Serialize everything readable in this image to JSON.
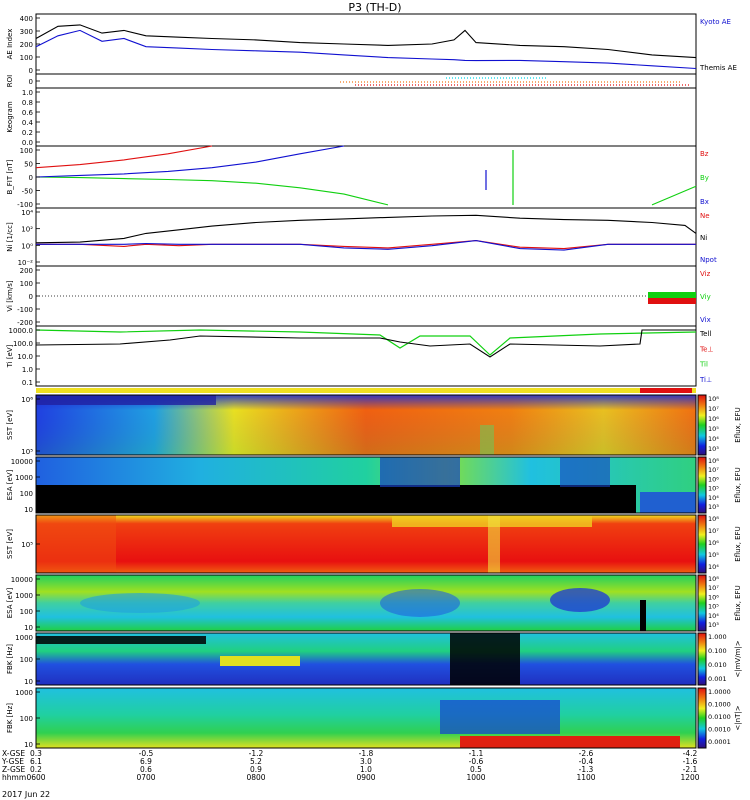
{
  "title": "P3 (TH-D)",
  "colors": {
    "red": "#e01010",
    "green": "#10d010",
    "blue": "#1010d0",
    "black": "#000000",
    "cyan": "#00d8e8",
    "orange": "#f07818"
  },
  "footer": {
    "rows": [
      {
        "label": "X-GSE",
        "values": [
          "0.3",
          "-0.5",
          "-1.2",
          "-1.8",
          "-1.1",
          "-2.6",
          "-4.2"
        ]
      },
      {
        "label": "Y-GSE",
        "values": [
          "6.1",
          "6.9",
          "5.2",
          "3.0",
          "-0.6",
          "-0.4",
          "-1.6"
        ]
      },
      {
        "label": "Z-GSE",
        "values": [
          "0.2",
          "0.6",
          "0.9",
          "1.0",
          "0.5",
          "-1.3",
          "-2.1"
        ]
      },
      {
        "label": "hhmm",
        "values": [
          "0600",
          "0700",
          "0800",
          "0900",
          "1000",
          "1100",
          "1200"
        ]
      }
    ],
    "date": "2017 Jun 22"
  },
  "chart_data": [
    {
      "type": "line",
      "ylabel": "AE Index",
      "ylim": [
        -20,
        420
      ],
      "yticks": [
        "400",
        "300",
        "200",
        "100",
        "0"
      ],
      "legend": [
        "Kyoto AE",
        "Themis AE"
      ],
      "x_hours": [
        6.0,
        6.2,
        6.4,
        6.6,
        6.8,
        7.0,
        7.3,
        7.6,
        8.0,
        8.4,
        8.8,
        9.2,
        9.6,
        9.8,
        9.9,
        10.0,
        10.4,
        10.8,
        11.2,
        11.6,
        12.0
      ],
      "series": [
        {
          "name": "Kyoto AE",
          "values": [
            180,
            260,
            300,
            220,
            240,
            180,
            170,
            160,
            150,
            140,
            120,
            100,
            90,
            85,
            80,
            78,
            80,
            70,
            60,
            40,
            20
          ]
        },
        {
          "name": "Themis AE",
          "values": [
            240,
            330,
            340,
            280,
            300,
            260,
            250,
            240,
            230,
            210,
            200,
            190,
            200,
            230,
            300,
            210,
            190,
            180,
            160,
            120,
            100
          ]
        }
      ]
    },
    {
      "type": "line",
      "ylabel": "ROI",
      "ylim": [
        0,
        1
      ],
      "yticks": [
        "0"
      ]
    },
    {
      "type": "line",
      "ylabel": "Keogram",
      "ylim": [
        0,
        1
      ],
      "yticks": [
        "1.0",
        "0.8",
        "0.6",
        "0.4",
        "0.2",
        "0.0"
      ]
    },
    {
      "type": "line",
      "ylabel": "B_FIT [nT]",
      "ylim": [
        -100,
        100
      ],
      "yticks": [
        "100",
        "50",
        "0",
        "-50",
        "-100"
      ],
      "legend": [
        "Bz",
        "By",
        "Bx"
      ],
      "x_hours": [
        6.0,
        6.4,
        6.8,
        7.2,
        7.6,
        8.0,
        8.4,
        8.8,
        9.2,
        9.6,
        10.0,
        10.4,
        10.8,
        11.2,
        11.6,
        12.0
      ],
      "series": [
        {
          "name": "Bz",
          "values": [
            30,
            40,
            55,
            75,
            100,
            null,
            null,
            null,
            null,
            null,
            null,
            null,
            null,
            null,
            null,
            null
          ]
        },
        {
          "name": "By",
          "values": [
            0,
            -2,
            -5,
            -8,
            -12,
            -20,
            -35,
            -55,
            -90,
            null,
            null,
            null,
            null,
            null,
            -90,
            -30
          ]
        },
        {
          "name": "Bx",
          "values": [
            0,
            5,
            10,
            18,
            30,
            48,
            75,
            100,
            null,
            null,
            null,
            null,
            null,
            null,
            null,
            null
          ]
        }
      ]
    },
    {
      "type": "line",
      "ylabel": "Ni [1/cc]",
      "yscale": "log",
      "yticks": [
        "10⁴",
        "10²",
        "10⁰",
        "10⁻²"
      ],
      "legend": [
        "Ne",
        "Ni",
        "Npot"
      ],
      "x_hours": [
        6.0,
        6.4,
        6.8,
        7.0,
        7.3,
        7.6,
        8.0,
        8.4,
        8.8,
        9.2,
        9.6,
        10.0,
        10.4,
        10.8,
        11.2,
        11.6,
        11.9,
        12.0
      ],
      "series": [
        {
          "name": "Ne",
          "values": [
            0,
            0,
            -0.3,
            0,
            -0.2,
            0,
            0,
            0,
            -0.3,
            -0.5,
            0,
            0.5,
            -0.4,
            -0.6,
            0,
            0,
            0,
            0
          ]
        },
        {
          "name": "Ni",
          "values": [
            0.2,
            0.3,
            0.8,
            1.5,
            2.0,
            2.5,
            3.0,
            3.3,
            3.5,
            3.7,
            3.9,
            4.0,
            3.6,
            3.4,
            3.3,
            3.0,
            2.6,
            1.5
          ]
        },
        {
          "name": "Npot",
          "values": [
            0,
            0,
            0,
            0.1,
            0,
            0,
            0,
            0,
            -0.5,
            -0.7,
            -0.2,
            0.5,
            -0.6,
            -0.8,
            0,
            0,
            0,
            0
          ]
        }
      ]
    },
    {
      "type": "line",
      "ylabel": "Vi [km/s]",
      "ylim": [
        -250,
        250
      ],
      "yticks": [
        "200",
        "100",
        "0",
        "-100",
        "-200"
      ],
      "legend": [
        "Viz",
        "Viy",
        "Vix"
      ]
    },
    {
      "type": "line",
      "ylabel": "Ti [eV]",
      "yscale": "log",
      "yticks": [
        "1000.0",
        "100.0",
        "10.0",
        "1.0",
        "0.1"
      ],
      "legend": [
        "Tell",
        "Te⊥",
        "Til",
        "Ti⊥"
      ]
    },
    {
      "type": "heatmap",
      "ylabel": "SST [eV]",
      "colorbar_label": "Eflux, EFU",
      "yticks": [
        "10⁶",
        "10⁵"
      ],
      "cbticks": [
        "10⁸",
        "10⁷",
        "10⁶",
        "10⁵",
        "10⁴",
        "10³"
      ]
    },
    {
      "type": "heatmap",
      "ylabel": "ESA [eV]",
      "colorbar_label": "Eflux, EFU",
      "yticks": [
        "10000",
        "1000",
        "100",
        "10"
      ],
      "cbticks": [
        "10⁸",
        "10⁷",
        "10⁶",
        "10⁵",
        "10⁴",
        "10³"
      ]
    },
    {
      "type": "heatmap",
      "ylabel": "SST [eV]",
      "colorbar_label": "Eflux, EFU",
      "yticks": [
        "10⁵"
      ],
      "cbticks": [
        "10⁸",
        "10⁷",
        "10⁶",
        "10⁵",
        "10⁴"
      ]
    },
    {
      "type": "heatmap",
      "ylabel": "ESA [eV]",
      "colorbar_label": "Eflux, EFU",
      "yticks": [
        "10000",
        "1000",
        "100",
        "10"
      ],
      "cbticks": [
        "10⁸",
        "10⁷",
        "10⁶",
        "10⁵",
        "10⁴",
        "10³"
      ]
    },
    {
      "type": "heatmap",
      "ylabel": "FBK [Hz]",
      "colorbar_label": "<|mV/m|>",
      "yticks": [
        "1000",
        "100",
        "10"
      ],
      "cbticks": [
        "1.000",
        "0.100",
        "0.010",
        "0.001"
      ]
    },
    {
      "type": "heatmap",
      "ylabel": "FBK [Hz]",
      "colorbar_label": "<|nT|>",
      "yticks": [
        "1000",
        "100",
        "10"
      ],
      "cbticks": [
        "1.0000",
        "0.1000",
        "0.0100",
        "0.0010",
        "0.0001"
      ]
    }
  ]
}
